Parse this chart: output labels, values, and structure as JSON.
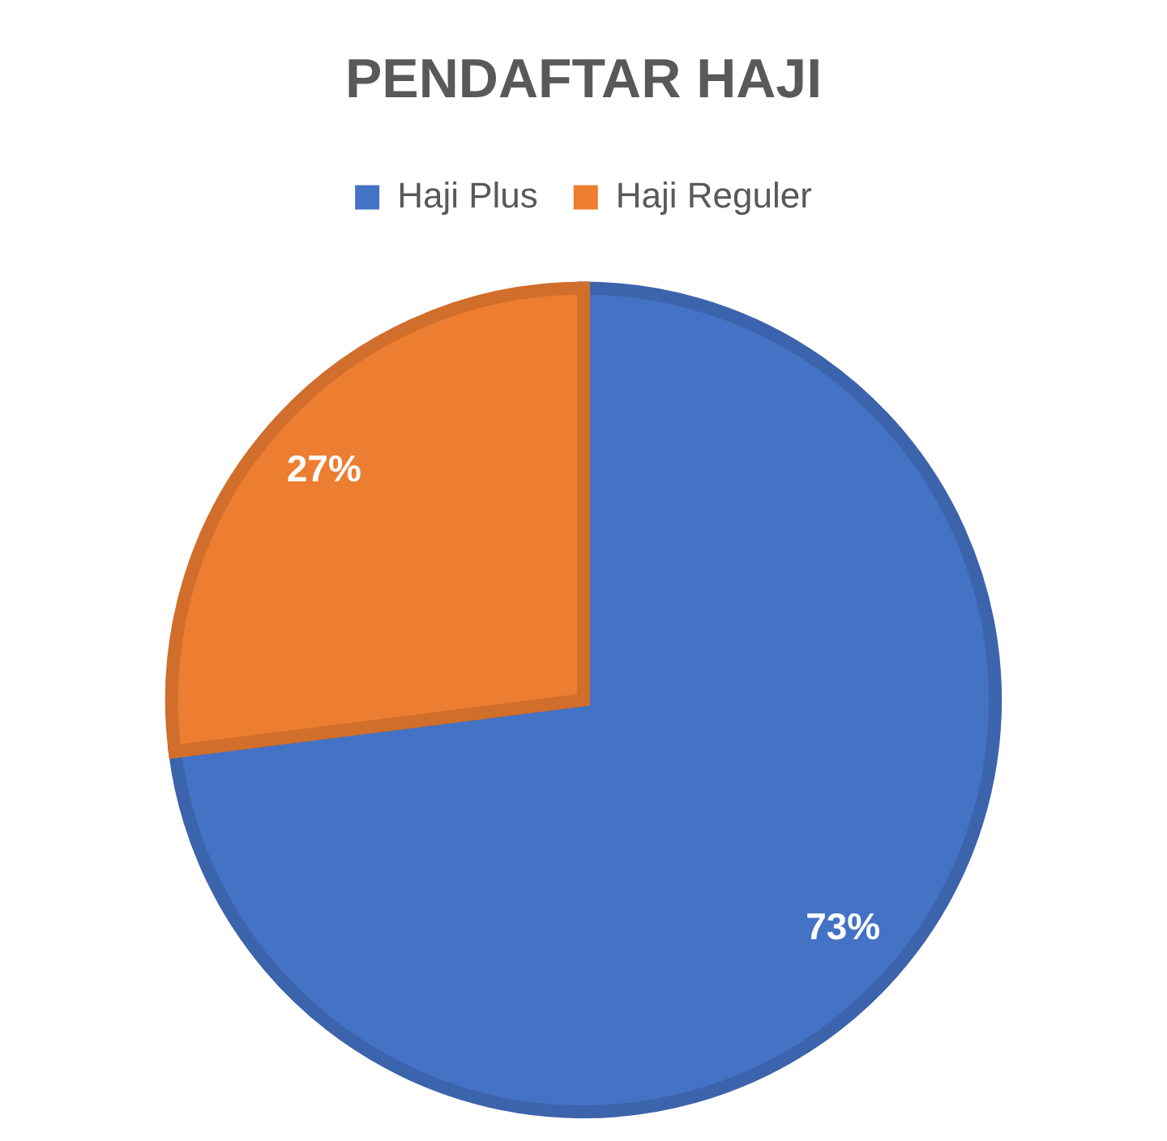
{
  "chart_data": {
    "type": "pie",
    "title": "PENDAFTAR HAJI",
    "categories": [
      "Haji Plus",
      "Haji Reguler"
    ],
    "values": [
      73,
      27
    ],
    "colors": [
      "#4472c4",
      "#ed7d31"
    ],
    "value_labels": [
      "73%",
      "27%"
    ],
    "legend": "top"
  }
}
